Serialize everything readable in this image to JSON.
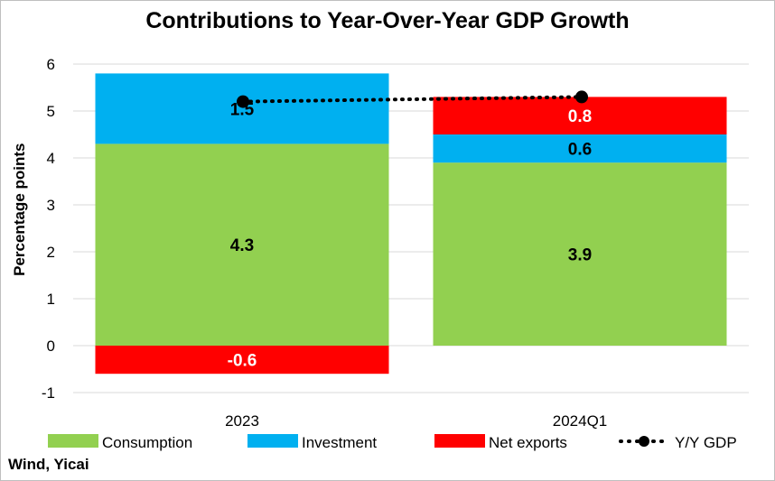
{
  "chart_data": {
    "type": "bar",
    "stacked": true,
    "title": "Contributions to Year-Over-Year GDP Growth",
    "xlabel": "",
    "ylabel": "Percentage points",
    "ylim": [
      -1,
      6
    ],
    "yticks": [
      -1,
      0,
      1,
      2,
      3,
      4,
      5,
      6
    ],
    "grid": true,
    "legend_position": "bottom",
    "categories": [
      "2023",
      "2024Q1"
    ],
    "series": [
      {
        "name": "Consumption",
        "type": "bar",
        "color": "#92d050",
        "values": [
          4.3,
          3.9
        ],
        "labels": [
          "4.3",
          "3.9"
        ]
      },
      {
        "name": "Investment",
        "type": "bar",
        "color": "#00b0f0",
        "values": [
          1.5,
          0.6
        ],
        "labels": [
          "1.5",
          "0.6"
        ]
      },
      {
        "name": "Net exports",
        "type": "bar",
        "color": "#ff0000",
        "values": [
          -0.6,
          0.8
        ],
        "labels": [
          "-0.6",
          "0.8"
        ]
      },
      {
        "name": "Y/Y GDP",
        "type": "line",
        "style": "dotted",
        "color": "#000000",
        "values": [
          5.2,
          5.3
        ]
      }
    ]
  },
  "source": "Wind, Yicai"
}
